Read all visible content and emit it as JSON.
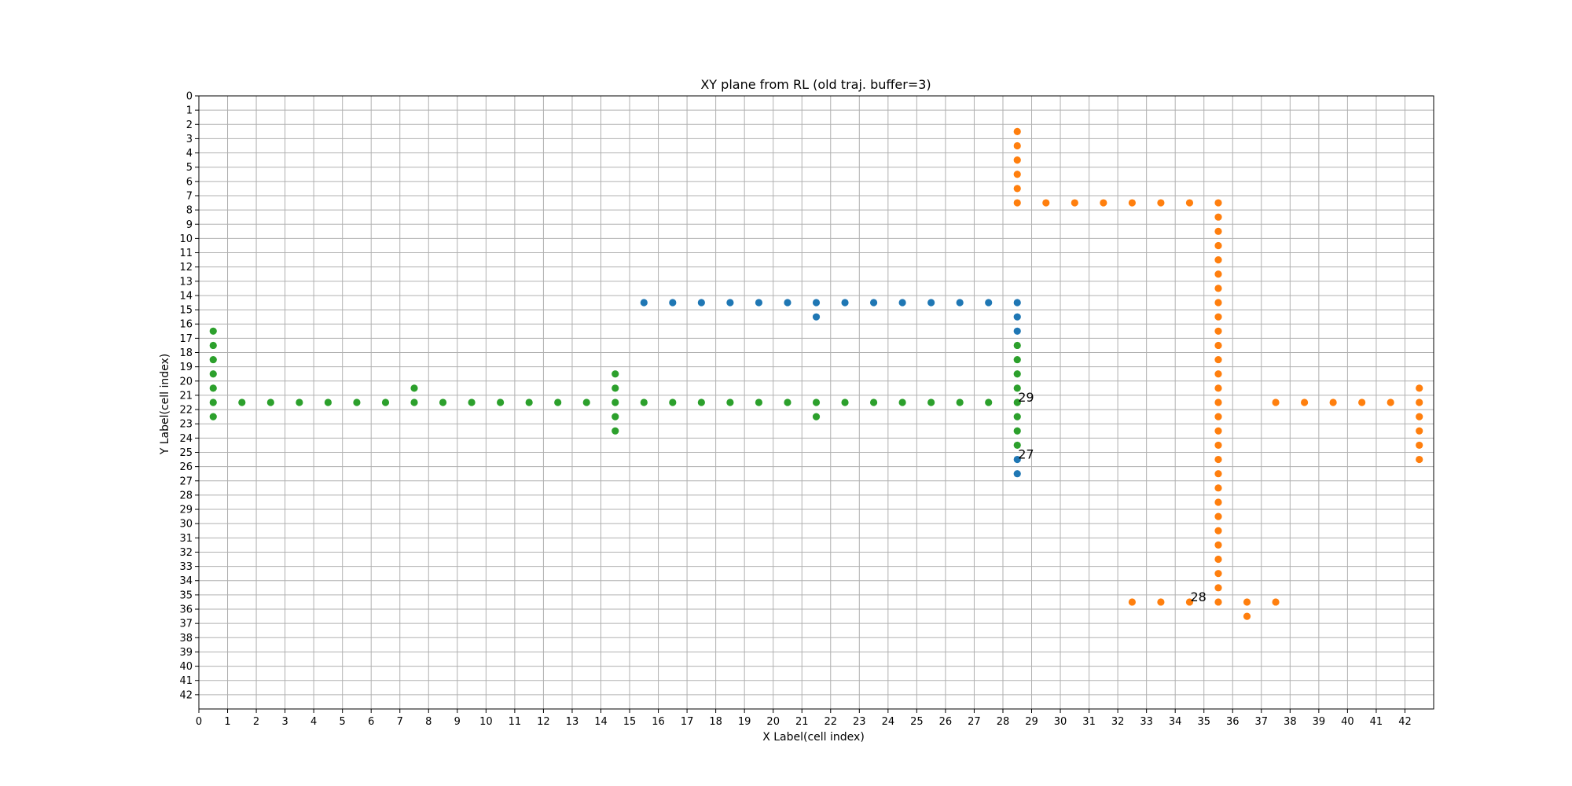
{
  "chart_data": {
    "type": "scatter",
    "title": "XY plane  from RL (old traj. buffer=3)",
    "xlabel": "X Label(cell index)",
    "ylabel": "Y Label(cell index)",
    "xlim": [
      0,
      43
    ],
    "ylim": [
      43,
      0
    ],
    "y_inverted": true,
    "grid": true,
    "x_ticks": [
      0,
      1,
      2,
      3,
      4,
      5,
      6,
      7,
      8,
      9,
      10,
      11,
      12,
      13,
      14,
      15,
      16,
      17,
      18,
      19,
      20,
      21,
      22,
      23,
      24,
      25,
      26,
      27,
      28,
      29,
      30,
      31,
      32,
      33,
      34,
      35,
      36,
      37,
      38,
      39,
      40,
      41,
      42
    ],
    "y_ticks": [
      0,
      1,
      2,
      3,
      4,
      5,
      6,
      7,
      8,
      9,
      10,
      11,
      12,
      13,
      14,
      15,
      16,
      17,
      18,
      19,
      20,
      21,
      22,
      23,
      24,
      25,
      26,
      27,
      28,
      29,
      30,
      31,
      32,
      33,
      34,
      35,
      36,
      37,
      38,
      39,
      40,
      41,
      42
    ],
    "series": [
      {
        "color": "#1f77b4",
        "x": [
          15.5,
          16.5,
          17.5,
          18.5,
          19.5,
          20.5,
          21.5,
          22.5,
          23.5,
          24.5,
          25.5,
          26.5,
          27.5,
          28.5,
          21.5,
          28.5,
          28.5,
          28.5,
          28.5
        ],
        "y": [
          14.5,
          14.5,
          14.5,
          14.5,
          14.5,
          14.5,
          14.5,
          14.5,
          14.5,
          14.5,
          14.5,
          14.5,
          14.5,
          14.5,
          15.5,
          15.5,
          16.5,
          25.5,
          26.5
        ]
      },
      {
        "color": "#ff7f0e",
        "x": [
          28.5,
          28.5,
          28.5,
          28.5,
          28.5,
          28.5,
          29.5,
          30.5,
          31.5,
          32.5,
          33.5,
          34.5,
          35.5,
          35.5,
          35.5,
          35.5,
          35.5,
          35.5,
          35.5,
          35.5,
          35.5,
          35.5,
          35.5,
          35.5,
          35.5,
          35.5,
          35.5,
          35.5,
          35.5,
          35.5,
          35.5,
          35.5,
          35.5,
          35.5,
          35.5,
          35.5,
          35.5,
          35.5,
          35.5,
          35.5,
          35.5,
          36.5,
          37.5,
          38.5,
          39.5,
          40.5,
          41.5,
          42.5,
          42.5,
          42.5,
          42.5,
          42.5,
          42.5,
          32.5,
          33.5,
          34.5,
          36.5,
          37.5
        ],
        "y": [
          2.5,
          3.5,
          4.5,
          5.5,
          6.5,
          7.5,
          7.5,
          7.5,
          7.5,
          7.5,
          7.5,
          7.5,
          7.5,
          8.5,
          9.5,
          10.5,
          11.5,
          12.5,
          13.5,
          14.5,
          15.5,
          16.5,
          17.5,
          18.5,
          19.5,
          20.5,
          21.5,
          22.5,
          23.5,
          24.5,
          25.5,
          26.5,
          27.5,
          28.5,
          29.5,
          30.5,
          31.5,
          32.5,
          33.5,
          34.5,
          35.5,
          36.5,
          21.5,
          21.5,
          21.5,
          21.5,
          21.5,
          21.5,
          20.5,
          22.5,
          23.5,
          24.5,
          25.5,
          35.5,
          35.5,
          35.5,
          35.5,
          35.5
        ]
      },
      {
        "color": "#2ca02c",
        "x": [
          0.5,
          0.5,
          0.5,
          0.5,
          0.5,
          0.5,
          0.5,
          1.5,
          2.5,
          3.5,
          4.5,
          5.5,
          6.5,
          7.5,
          7.5,
          8.5,
          9.5,
          10.5,
          11.5,
          12.5,
          13.5,
          14.5,
          14.5,
          14.5,
          14.5,
          14.5,
          15.5,
          16.5,
          17.5,
          18.5,
          19.5,
          20.5,
          21.5,
          21.5,
          22.5,
          23.5,
          24.5,
          25.5,
          26.5,
          27.5,
          28.5,
          28.5,
          28.5,
          28.5,
          28.5,
          28.5,
          28.5,
          28.5
        ],
        "y": [
          16.5,
          17.5,
          18.5,
          19.5,
          20.5,
          21.5,
          22.5,
          21.5,
          21.5,
          21.5,
          21.5,
          21.5,
          21.5,
          20.5,
          21.5,
          21.5,
          21.5,
          21.5,
          21.5,
          21.5,
          21.5,
          19.5,
          20.5,
          21.5,
          22.5,
          23.5,
          21.5,
          21.5,
          21.5,
          21.5,
          21.5,
          21.5,
          21.5,
          22.5,
          21.5,
          21.5,
          21.5,
          21.5,
          21.5,
          21.5,
          17.5,
          18.5,
          19.5,
          20.5,
          21.5,
          22.5,
          23.5,
          24.5
        ]
      }
    ],
    "annotations": [
      {
        "text": "29",
        "x": 28.5,
        "y": 21.5
      },
      {
        "text": "27",
        "x": 28.5,
        "y": 25.5
      },
      {
        "text": "28",
        "x": 34.5,
        "y": 35.5
      }
    ]
  }
}
